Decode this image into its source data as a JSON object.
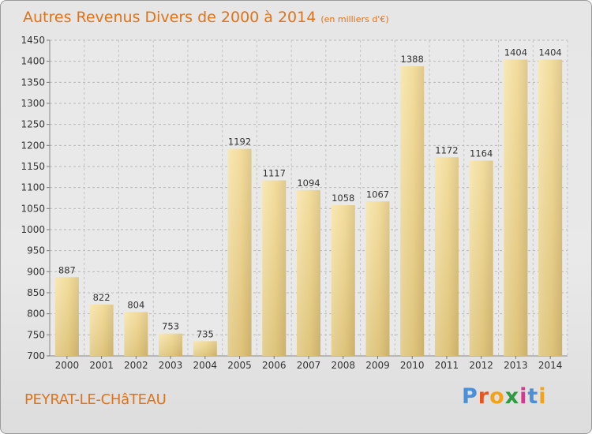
{
  "header": {
    "title": "Autres Revenus Divers de 2000 à 2014",
    "unit": "(en milliers d'€)"
  },
  "footer": {
    "city": "PEYRAT-LE-CHâTEAU",
    "logo_text": "Proxiti"
  },
  "colors": {
    "text_accent": "#e0731a",
    "bar_light": "#f5df9c",
    "bar_dark": "#c7ae68"
  },
  "chart_data": {
    "type": "bar",
    "title": "Autres Revenus Divers de 2000 à 2014",
    "xlabel": "",
    "ylabel": "",
    "categories": [
      "2000",
      "2001",
      "2002",
      "2003",
      "2004",
      "2005",
      "2006",
      "2007",
      "2008",
      "2009",
      "2010",
      "2011",
      "2012",
      "2013",
      "2014"
    ],
    "values": [
      887,
      822,
      804,
      753,
      735,
      1192,
      1117,
      1094,
      1058,
      1067,
      1388,
      1172,
      1164,
      1404,
      1404
    ],
    "ylim": [
      700,
      1450
    ],
    "yticks": [
      700,
      750,
      800,
      850,
      900,
      950,
      1000,
      1050,
      1100,
      1150,
      1200,
      1250,
      1300,
      1350,
      1400,
      1450
    ],
    "grid": true
  }
}
